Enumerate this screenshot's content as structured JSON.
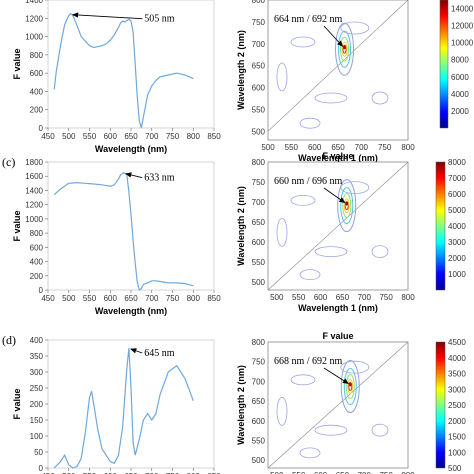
{
  "chart_data": [
    {
      "type": "line",
      "panel_label": "",
      "xlabel": "Wavelength (nm)",
      "ylabel": "F value",
      "xlim": [
        450,
        850
      ],
      "ylim": [
        0,
        1400
      ],
      "xticks": [
        "450",
        "500",
        "550",
        "600",
        "650",
        "700",
        "750",
        "800",
        "850"
      ],
      "yticks": [
        "0",
        "200",
        "400",
        "600",
        "800",
        "1000",
        "1200",
        "1400"
      ],
      "color": "#6fa8dc",
      "x": [
        465,
        470,
        480,
        490,
        500,
        505,
        510,
        520,
        530,
        540,
        550,
        560,
        570,
        580,
        590,
        600,
        610,
        620,
        625,
        630,
        635,
        640,
        645,
        650,
        655,
        660,
        665,
        670,
        675,
        680,
        690,
        700,
        710,
        720,
        740,
        760,
        780,
        800
      ],
      "y": [
        420,
        620,
        900,
        1130,
        1230,
        1250,
        1230,
        1120,
        1000,
        950,
        900,
        880,
        890,
        900,
        920,
        960,
        1020,
        1100,
        1150,
        1170,
        1160,
        1175,
        1190,
        1170,
        1050,
        700,
        350,
        80,
        0,
        120,
        360,
        460,
        520,
        560,
        580,
        600,
        580,
        540
      ],
      "annotations": [
        {
          "text": "505 nm",
          "x": 505,
          "y": 1250
        }
      ]
    },
    {
      "type": "contour",
      "panel_label": "",
      "title": "",
      "xlabel": "Wavelength 1 (nm)",
      "ylabel": "Wavelength 2 (nm)",
      "xlim": [
        500,
        800
      ],
      "ylim": [
        480,
        800
      ],
      "xticks": [
        "500",
        "550",
        "600",
        "650",
        "700",
        "750",
        "800"
      ],
      "yticks": [
        "500",
        "550",
        "600",
        "650",
        "700",
        "750",
        "800"
      ],
      "colorbar_ticks": [
        "2000",
        "4000",
        "6000",
        "8000",
        "10000",
        "12000",
        "14000"
      ],
      "colorbar_range": [
        0,
        15000
      ],
      "peak": {
        "x": 664,
        "y": 692
      },
      "annotations": [
        {
          "text": "664 nm / 692 nm",
          "x": 664,
          "y": 692
        }
      ]
    },
    {
      "type": "line",
      "panel_label": "(c)",
      "xlabel": "Wavelength (nm)",
      "ylabel": "F value",
      "xlim": [
        450,
        850
      ],
      "ylim": [
        0,
        1800
      ],
      "xticks": [
        "450",
        "500",
        "550",
        "600",
        "650",
        "700",
        "750",
        "800",
        "850"
      ],
      "yticks": [
        "0",
        "200",
        "400",
        "600",
        "800",
        "1000",
        "1200",
        "1400",
        "1600",
        "1800"
      ],
      "color": "#6fa8dc",
      "x": [
        465,
        480,
        500,
        520,
        540,
        560,
        580,
        600,
        610,
        620,
        625,
        630,
        633,
        640,
        645,
        650,
        655,
        660,
        665,
        670,
        675,
        680,
        690,
        700,
        710,
        720,
        740,
        760,
        780,
        800
      ],
      "y": [
        1340,
        1420,
        1500,
        1510,
        1500,
        1490,
        1480,
        1460,
        1480,
        1560,
        1620,
        1640,
        1650,
        1620,
        1380,
        1060,
        700,
        380,
        120,
        0,
        20,
        80,
        100,
        130,
        130,
        120,
        100,
        100,
        90,
        60
      ],
      "annotations": [
        {
          "text": "633 nm",
          "x": 633,
          "y": 1650
        }
      ]
    },
    {
      "type": "contour",
      "panel_label": "",
      "title": "F value",
      "xlabel": "Wavelength 1 (nm)",
      "ylabel": "Wavelength 2 (nm)",
      "xlim": [
        480,
        800
      ],
      "ylim": [
        480,
        800
      ],
      "xticks": [
        "500",
        "550",
        "600",
        "650",
        "700",
        "750",
        "800"
      ],
      "yticks": [
        "500",
        "550",
        "600",
        "650",
        "700",
        "750",
        "800"
      ],
      "colorbar_ticks": [
        "1000",
        "2000",
        "3000",
        "4000",
        "5000",
        "6000",
        "7000",
        "8000"
      ],
      "colorbar_range": [
        0,
        8000
      ],
      "peak": {
        "x": 660,
        "y": 696
      },
      "annotations": [
        {
          "text": "660 nm / 696 nm",
          "x": 660,
          "y": 696
        }
      ]
    },
    {
      "type": "line",
      "panel_label": "(d)",
      "xlabel": "",
      "ylabel": "F value",
      "xlim": [
        450,
        850
      ],
      "ylim": [
        0,
        400
      ],
      "xticks": [
        "450",
        "500",
        "550",
        "600",
        "650",
        "700",
        "750",
        "800",
        "850"
      ],
      "yticks": [
        "0",
        "50",
        "100",
        "150",
        "200",
        "250",
        "300",
        "350",
        "400"
      ],
      "color": "#6fa8dc",
      "x": [
        465,
        480,
        490,
        500,
        510,
        520,
        530,
        540,
        550,
        555,
        560,
        570,
        580,
        590,
        600,
        610,
        620,
        630,
        640,
        645,
        650,
        655,
        660,
        670,
        680,
        690,
        700,
        710,
        720,
        740,
        760,
        780,
        800
      ],
      "y": [
        0,
        20,
        40,
        10,
        0,
        5,
        30,
        110,
        220,
        240,
        200,
        120,
        60,
        40,
        20,
        15,
        40,
        130,
        310,
        375,
        250,
        80,
        40,
        90,
        150,
        170,
        150,
        170,
        230,
        300,
        320,
        280,
        210
      ],
      "annotations": [
        {
          "text": "645 nm",
          "x": 645,
          "y": 375
        }
      ]
    },
    {
      "type": "contour",
      "panel_label": "",
      "title": "F value",
      "xlabel": "",
      "ylabel": "Wavelength 2 (nm)",
      "xlim": [
        480,
        800
      ],
      "ylim": [
        480,
        800
      ],
      "xticks": [
        "500",
        "550",
        "600",
        "650",
        "700",
        "750",
        "800"
      ],
      "yticks": [
        "500",
        "550",
        "600",
        "650",
        "700",
        "750",
        "800"
      ],
      "colorbar_ticks": [
        "500",
        "1000",
        "1500",
        "2000",
        "2500",
        "3000",
        "3500",
        "4000",
        "4500"
      ],
      "colorbar_range": [
        500,
        4500
      ],
      "peak": {
        "x": 668,
        "y": 692
      },
      "annotations": [
        {
          "text": "668 nm / 692 nm",
          "x": 668,
          "y": 692
        }
      ]
    }
  ]
}
